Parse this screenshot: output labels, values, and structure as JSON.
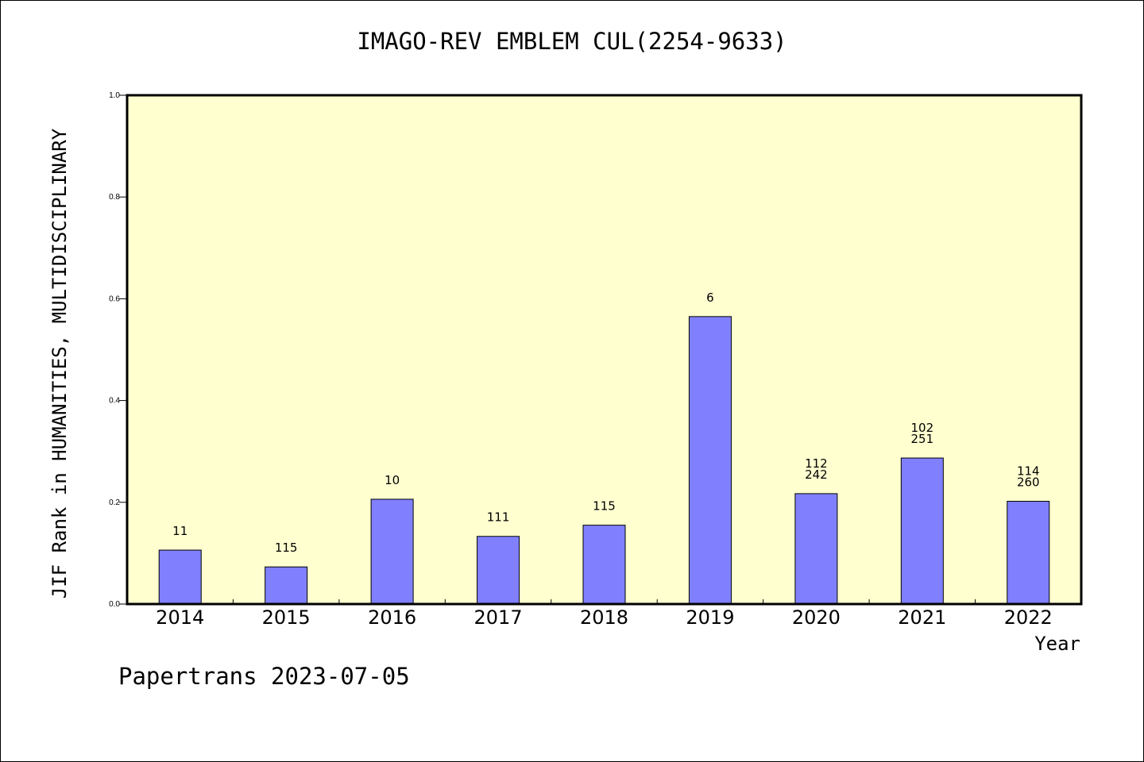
{
  "chart_data": {
    "type": "bar",
    "title": "IMAGO-REV EMBLEM CUL(2254-9633)",
    "xlabel": "Year",
    "ylabel": "JIF Rank in HUMANITIES, MULTIDISCIPLINARY",
    "ylim": [
      0,
      1.0
    ],
    "yticks": [
      "0.0",
      "0.2",
      "0.4",
      "0.6",
      "0.8",
      "1.0"
    ],
    "categories": [
      "2014",
      "2015",
      "2016",
      "2017",
      "2018",
      "2019",
      "2020",
      "2021",
      "2022"
    ],
    "values": [
      0.106,
      0.073,
      0.206,
      0.133,
      0.155,
      0.565,
      0.217,
      0.287,
      0.202
    ],
    "bar_labels": [
      [
        "11"
      ],
      [
        "115"
      ],
      [
        "10"
      ],
      [
        "111"
      ],
      [
        "115"
      ],
      [
        "6"
      ],
      [
        "112",
        "242"
      ],
      [
        "102",
        "251"
      ],
      [
        "114",
        "260"
      ]
    ],
    "grid": false,
    "colors": {
      "bar_fill": "#8080ff",
      "plot_background": "#ffffd0",
      "axis": "#000000"
    }
  },
  "footer": "Papertrans 2023-07-05"
}
